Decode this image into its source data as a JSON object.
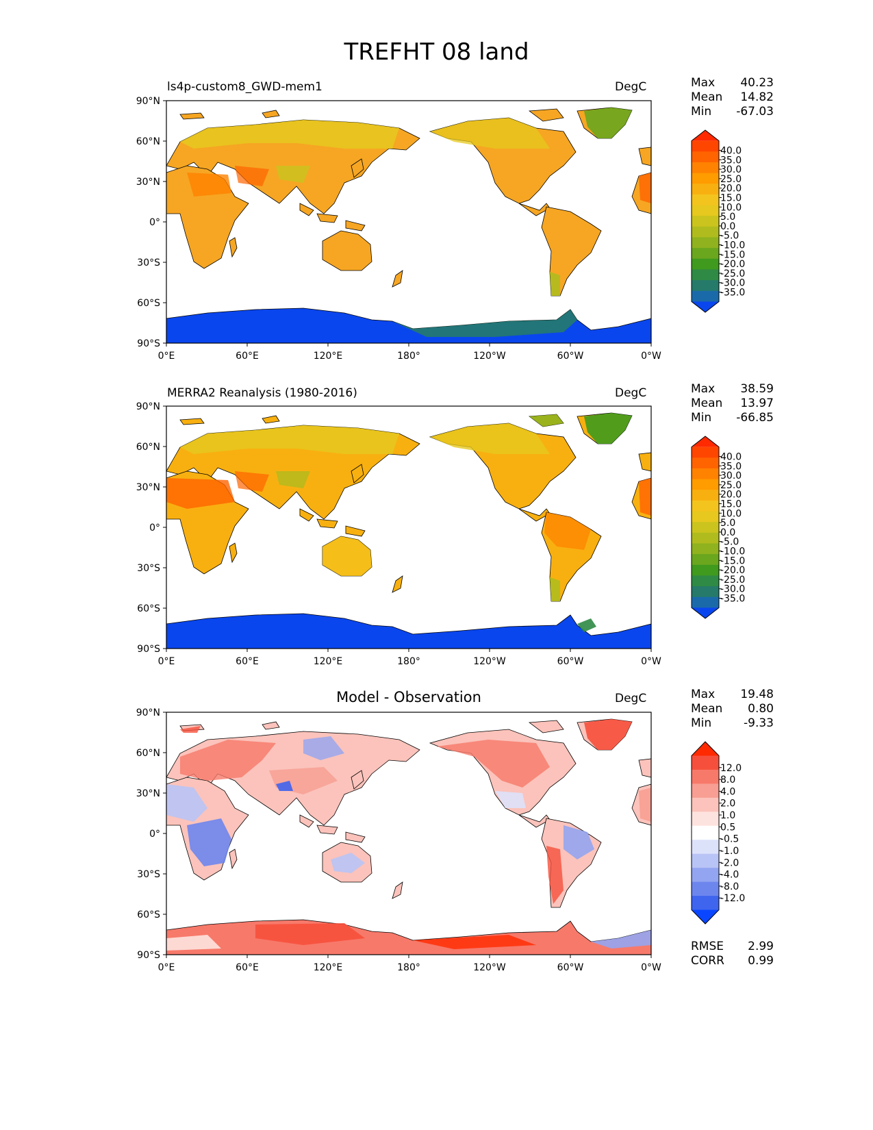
{
  "figure_title": "TREFHT 08 land",
  "map_axes": {
    "lat_ticks": [
      "90°N",
      "60°N",
      "30°N",
      "0°",
      "30°S",
      "60°S",
      "90°S"
    ],
    "lon_ticks": [
      "0°E",
      "60°E",
      "120°E",
      "180°",
      "120°W",
      "60°W",
      "0°W"
    ]
  },
  "panels": [
    {
      "id": "model",
      "title": "ls4p-custom8_GWD-mem1",
      "units": "DegC",
      "stats": {
        "max_label": "Max",
        "max": "40.23",
        "mean_label": "Mean",
        "mean": "14.82",
        "min_label": "Min",
        "min": "-67.03"
      },
      "colorbar": {
        "labels": [
          "40.0",
          "35.0",
          "30.0",
          "25.0",
          "20.0",
          "15.0",
          "10.0",
          "5.0",
          "0.0",
          "-5.0",
          "-10.0",
          "-15.0",
          "-20.0",
          "-25.0",
          "-30.0",
          "-35.0"
        ],
        "colors": [
          "#ff2a00",
          "#ff4600",
          "#ff6400",
          "#ff8200",
          "#ff9c00",
          "#f8b010",
          "#f4c41e",
          "#e6c81e",
          "#cbc41e",
          "#b0bc1e",
          "#8fb21e",
          "#6aa61e",
          "#3f9a1e",
          "#2e8a44",
          "#257a6a",
          "#1a6aaa",
          "#0a46ee"
        ]
      }
    },
    {
      "id": "obs",
      "title": "MERRA2 Reanalysis (1980-2016)",
      "units": "DegC",
      "stats": {
        "max_label": "Max",
        "max": "38.59",
        "mean_label": "Mean",
        "mean": "13.97",
        "min_label": "Min",
        "min": "-66.85"
      },
      "colorbar": {
        "labels": [
          "40.0",
          "35.0",
          "30.0",
          "25.0",
          "20.0",
          "15.0",
          "10.0",
          "5.0",
          "0.0",
          "-5.0",
          "-10.0",
          "-15.0",
          "-20.0",
          "-25.0",
          "-30.0",
          "-35.0"
        ],
        "colors": [
          "#ff2a00",
          "#ff4600",
          "#ff6400",
          "#ff8200",
          "#ff9c00",
          "#f8b010",
          "#f4c41e",
          "#e6c81e",
          "#cbc41e",
          "#b0bc1e",
          "#8fb21e",
          "#6aa61e",
          "#3f9a1e",
          "#2e8a44",
          "#257a6a",
          "#1a6aaa",
          "#0a46ee"
        ]
      }
    },
    {
      "id": "diff",
      "title": "Model - Observation",
      "units": "DegC",
      "stats": {
        "max_label": "Max",
        "max": "19.48",
        "mean_label": "Mean",
        "mean": "0.80",
        "min_label": "Min",
        "min": "-9.33"
      },
      "colorbar": {
        "labels": [
          "12.0",
          "8.0",
          "4.0",
          "2.0",
          "1.0",
          "0.5",
          "-0.5",
          "-1.0",
          "-2.0",
          "-4.0",
          "-8.0",
          "-12.0"
        ],
        "colors": [
          "#ff2a00",
          "#f6503c",
          "#f7796a",
          "#f89e92",
          "#fbc3bb",
          "#fde3df",
          "#ffffff",
          "#dde2fb",
          "#b9c4f6",
          "#93a5f1",
          "#6d86ee",
          "#3f64ee",
          "#0a46ff"
        ]
      },
      "metrics": {
        "rmse_label": "RMSE",
        "rmse": "2.99",
        "corr_label": "CORR",
        "corr": "0.99"
      }
    }
  ],
  "chart_data": [
    {
      "type": "heatmap",
      "title": "ls4p-custom8_GWD-mem1",
      "variable": "TREFHT",
      "units": "DegC",
      "x_range": [
        0,
        360
      ],
      "y_range": [
        -90,
        90
      ],
      "xlabel": "",
      "ylabel": "",
      "contour_levels": [
        -35,
        -30,
        -25,
        -20,
        -15,
        -10,
        -5,
        0,
        5,
        10,
        15,
        20,
        25,
        30,
        35,
        40
      ],
      "max": 40.23,
      "mean": 14.82,
      "min": -67.03
    },
    {
      "type": "heatmap",
      "title": "MERRA2 Reanalysis (1980-2016)",
      "variable": "TREFHT",
      "units": "DegC",
      "x_range": [
        0,
        360
      ],
      "y_range": [
        -90,
        90
      ],
      "contour_levels": [
        -35,
        -30,
        -25,
        -20,
        -15,
        -10,
        -5,
        0,
        5,
        10,
        15,
        20,
        25,
        30,
        35,
        40
      ],
      "max": 38.59,
      "mean": 13.97,
      "min": -66.85
    },
    {
      "type": "heatmap",
      "title": "Model - Observation",
      "variable": "TREFHT",
      "units": "DegC",
      "x_range": [
        0,
        360
      ],
      "y_range": [
        -90,
        90
      ],
      "contour_levels": [
        -12,
        -8,
        -4,
        -2,
        -1,
        -0.5,
        0.5,
        1,
        2,
        4,
        8,
        12
      ],
      "max": 19.48,
      "mean": 0.8,
      "min": -9.33,
      "rmse": 2.99,
      "corr": 0.99
    }
  ]
}
